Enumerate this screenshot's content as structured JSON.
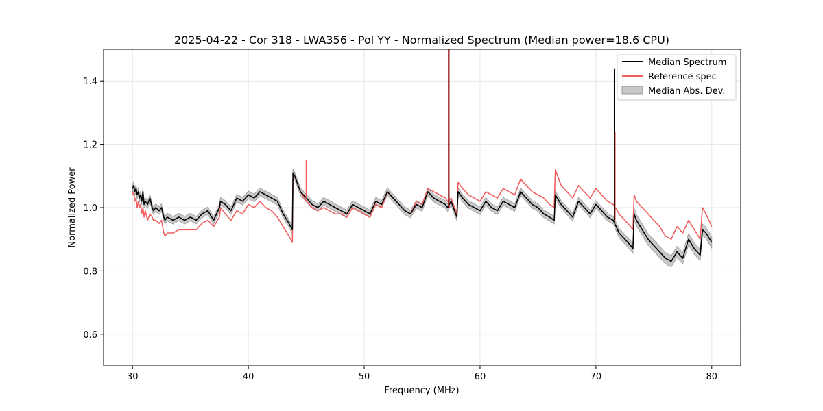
{
  "chart_data": {
    "type": "line",
    "title": "2025-04-22 - Cor 318 - LWA356 - Pol YY - Normalized Spectrum (Median power=18.6 CPU)",
    "xlabel": "Frequency (MHz)",
    "ylabel": "Normalized Power",
    "xlim": [
      27.5,
      82.5
    ],
    "ylim": [
      0.5,
      1.5
    ],
    "xticks": [
      30,
      40,
      50,
      60,
      70,
      80
    ],
    "yticks": [
      0.6,
      0.8,
      1.0,
      1.2,
      1.4
    ],
    "xtick_labels": [
      "30",
      "40",
      "50",
      "60",
      "70",
      "80"
    ],
    "ytick_labels": [
      "0.6",
      "0.8",
      "1.0",
      "1.2",
      "1.4"
    ],
    "grid": true,
    "legend_position": "top-right",
    "legend": [
      "Median Spectrum",
      "Reference spec",
      "Median Abs. Dev."
    ],
    "colors": {
      "median": "#000000",
      "reference": "#f06060",
      "mad_fill": "#c8c8c8",
      "mad_edge": "#9a9a9a",
      "spike": "#8b0000",
      "grid": "#e6e6e6"
    },
    "series": [
      {
        "name": "Median Spectrum",
        "x": [
          30.0,
          30.1,
          30.2,
          30.3,
          30.4,
          30.5,
          30.6,
          30.7,
          30.8,
          30.9,
          31.0,
          31.1,
          31.3,
          31.5,
          31.7,
          31.8,
          32.0,
          32.3,
          32.5,
          32.7,
          32.8,
          33.0,
          33.5,
          34.0,
          34.5,
          35.0,
          35.5,
          36.0,
          36.5,
          37.0,
          37.5,
          37.6,
          38.0,
          38.5,
          39.0,
          39.5,
          40.0,
          40.5,
          41.0,
          41.5,
          42.0,
          42.5,
          43.0,
          43.5,
          43.8,
          43.85,
          44.0,
          44.5,
          45.0,
          45.5,
          46.0,
          46.5,
          47.0,
          47.5,
          48.0,
          48.5,
          49.0,
          49.5,
          50.0,
          50.5,
          51.0,
          51.5,
          52.0,
          52.5,
          53.0,
          53.5,
          54.0,
          54.5,
          55.0,
          55.5,
          56.0,
          56.5,
          57.0,
          57.2,
          57.5,
          58.0,
          58.1,
          58.5,
          59.0,
          59.5,
          60.0,
          60.5,
          61.0,
          61.5,
          62.0,
          62.5,
          63.0,
          63.5,
          64.0,
          64.5,
          65.0,
          65.5,
          66.0,
          66.4,
          66.5,
          67.0,
          67.5,
          68.0,
          68.5,
          69.0,
          69.5,
          70.0,
          70.5,
          71.0,
          71.5,
          72.0,
          72.5,
          73.0,
          73.2,
          73.3,
          73.5,
          74.0,
          74.5,
          75.0,
          75.5,
          76.0,
          76.5,
          77.0,
          77.5,
          78.0,
          78.5,
          79.0,
          79.2,
          79.5,
          80.0
        ],
        "values": [
          1.06,
          1.07,
          1.05,
          1.06,
          1.04,
          1.05,
          1.03,
          1.04,
          1.02,
          1.05,
          1.01,
          1.02,
          1.01,
          1.03,
          1.0,
          0.99,
          1.0,
          0.99,
          1.0,
          0.97,
          0.96,
          0.97,
          0.96,
          0.97,
          0.96,
          0.97,
          0.96,
          0.98,
          0.99,
          0.96,
          1.0,
          1.02,
          1.01,
          0.99,
          1.03,
          1.02,
          1.04,
          1.03,
          1.05,
          1.04,
          1.03,
          1.02,
          0.98,
          0.95,
          0.93,
          1.11,
          1.1,
          1.05,
          1.03,
          1.01,
          1.0,
          1.02,
          1.01,
          1.0,
          0.99,
          0.98,
          1.01,
          1.0,
          0.99,
          0.98,
          1.02,
          1.01,
          1.05,
          1.03,
          1.01,
          0.99,
          0.98,
          1.01,
          1.0,
          1.05,
          1.03,
          1.02,
          1.01,
          1.0,
          1.02,
          0.97,
          1.05,
          1.03,
          1.01,
          1.0,
          0.99,
          1.02,
          1.0,
          0.99,
          1.02,
          1.01,
          1.0,
          1.05,
          1.03,
          1.01,
          1.0,
          0.98,
          0.97,
          0.96,
          1.04,
          1.01,
          0.99,
          0.97,
          1.02,
          1.0,
          0.98,
          1.01,
          0.99,
          0.97,
          0.96,
          0.92,
          0.9,
          0.88,
          0.87,
          0.98,
          0.96,
          0.93,
          0.9,
          0.88,
          0.86,
          0.84,
          0.83,
          0.86,
          0.84,
          0.9,
          0.87,
          0.85,
          0.93,
          0.92,
          0.89
        ]
      },
      {
        "name": "Reference spec",
        "x": [
          30.0,
          30.1,
          30.2,
          30.3,
          30.4,
          30.5,
          30.6,
          30.7,
          30.8,
          30.9,
          31.0,
          31.1,
          31.3,
          31.5,
          31.7,
          31.8,
          32.0,
          32.3,
          32.5,
          32.7,
          32.8,
          33.0,
          33.5,
          34.0,
          34.5,
          35.0,
          35.5,
          36.0,
          36.5,
          37.0,
          37.5,
          37.6,
          38.0,
          38.5,
          39.0,
          39.5,
          40.0,
          40.5,
          41.0,
          41.5,
          42.0,
          42.5,
          43.0,
          43.5,
          43.8,
          43.85,
          44.0,
          44.5,
          45.0,
          45.5,
          46.0,
          46.5,
          47.0,
          47.5,
          48.0,
          48.5,
          49.0,
          49.5,
          50.0,
          50.5,
          51.0,
          51.5,
          52.0,
          52.5,
          53.0,
          53.5,
          54.0,
          54.5,
          55.0,
          55.5,
          56.0,
          56.5,
          57.0,
          57.2,
          57.5,
          58.0,
          58.1,
          58.5,
          59.0,
          59.5,
          60.0,
          60.5,
          61.0,
          61.5,
          62.0,
          62.5,
          63.0,
          63.5,
          64.0,
          64.5,
          65.0,
          65.5,
          66.0,
          66.4,
          66.5,
          67.0,
          67.5,
          68.0,
          68.5,
          69.0,
          69.5,
          70.0,
          70.5,
          71.0,
          71.5,
          72.0,
          72.5,
          73.0,
          73.2,
          73.3,
          73.5,
          74.0,
          74.5,
          75.0,
          75.5,
          76.0,
          76.5,
          77.0,
          77.5,
          78.0,
          78.5,
          79.0,
          79.2,
          79.5,
          80.0
        ],
        "values": [
          1.04,
          1.05,
          1.02,
          1.03,
          1.0,
          1.02,
          1.0,
          1.01,
          0.98,
          1.0,
          0.97,
          0.99,
          0.96,
          0.98,
          0.97,
          0.96,
          0.96,
          0.95,
          0.96,
          0.92,
          0.91,
          0.92,
          0.92,
          0.93,
          0.93,
          0.93,
          0.93,
          0.95,
          0.96,
          0.94,
          0.97,
          1.0,
          0.98,
          0.96,
          0.99,
          0.98,
          1.01,
          1.0,
          1.02,
          1.0,
          0.99,
          0.97,
          0.94,
          0.91,
          0.89,
          1.11,
          1.1,
          1.05,
          1.02,
          1.0,
          0.99,
          1.0,
          0.99,
          0.98,
          0.98,
          0.97,
          1.0,
          0.99,
          0.98,
          0.97,
          1.01,
          1.0,
          1.05,
          1.03,
          1.01,
          0.99,
          0.98,
          1.02,
          1.01,
          1.06,
          1.05,
          1.04,
          1.03,
          1.02,
          1.03,
          0.98,
          1.08,
          1.06,
          1.04,
          1.03,
          1.02,
          1.05,
          1.04,
          1.03,
          1.06,
          1.05,
          1.04,
          1.09,
          1.07,
          1.05,
          1.04,
          1.03,
          1.01,
          1.0,
          1.12,
          1.07,
          1.05,
          1.03,
          1.07,
          1.05,
          1.03,
          1.06,
          1.04,
          1.02,
          1.01,
          0.98,
          0.96,
          0.94,
          0.93,
          1.04,
          1.02,
          1.0,
          0.98,
          0.96,
          0.94,
          0.91,
          0.9,
          0.94,
          0.92,
          0.96,
          0.93,
          0.9,
          1.0,
          0.98,
          0.94
        ]
      }
    ],
    "mad_band": {
      "name": "Median Abs. Dev.",
      "half_width": [
        0.012,
        0.012,
        0.012,
        0.012,
        0.012,
        0.012,
        0.012,
        0.012,
        0.012,
        0.012,
        0.012,
        0.012,
        0.012,
        0.012,
        0.012,
        0.012,
        0.012,
        0.012,
        0.012,
        0.012,
        0.012,
        0.012,
        0.012,
        0.012,
        0.012,
        0.012,
        0.012,
        0.012,
        0.012,
        0.012,
        0.012,
        0.012,
        0.012,
        0.012,
        0.012,
        0.012,
        0.012,
        0.012,
        0.012,
        0.012,
        0.012,
        0.012,
        0.012,
        0.012,
        0.012,
        0.012,
        0.012,
        0.012,
        0.012,
        0.012,
        0.012,
        0.012,
        0.012,
        0.012,
        0.012,
        0.012,
        0.012,
        0.012,
        0.012,
        0.012,
        0.012,
        0.012,
        0.012,
        0.012,
        0.012,
        0.012,
        0.012,
        0.012,
        0.012,
        0.012,
        0.012,
        0.012,
        0.012,
        0.012,
        0.012,
        0.012,
        0.012,
        0.012,
        0.012,
        0.012,
        0.012,
        0.012,
        0.012,
        0.012,
        0.012,
        0.012,
        0.012,
        0.012,
        0.012,
        0.012,
        0.012,
        0.012,
        0.012,
        0.012,
        0.012,
        0.012,
        0.012,
        0.012,
        0.012,
        0.012,
        0.012,
        0.012,
        0.012,
        0.012,
        0.012,
        0.015,
        0.015,
        0.015,
        0.015,
        0.018,
        0.018,
        0.018,
        0.018,
        0.018,
        0.018,
        0.018,
        0.018,
        0.018,
        0.018,
        0.018,
        0.018,
        0.018,
        0.018,
        0.018,
        0.018
      ]
    },
    "spikes": [
      {
        "x": 45.0,
        "base": 1.03,
        "peak": 1.15,
        "series": "Reference spec"
      },
      {
        "x": 57.3,
        "base": 1.0,
        "peak": 1.5,
        "series": "Median Spectrum"
      },
      {
        "x": 71.6,
        "base": 0.96,
        "peak": 1.44,
        "series": "Median Spectrum"
      },
      {
        "x": 71.65,
        "base": 0.96,
        "peak": 1.24,
        "series": "Reference spec"
      }
    ]
  }
}
